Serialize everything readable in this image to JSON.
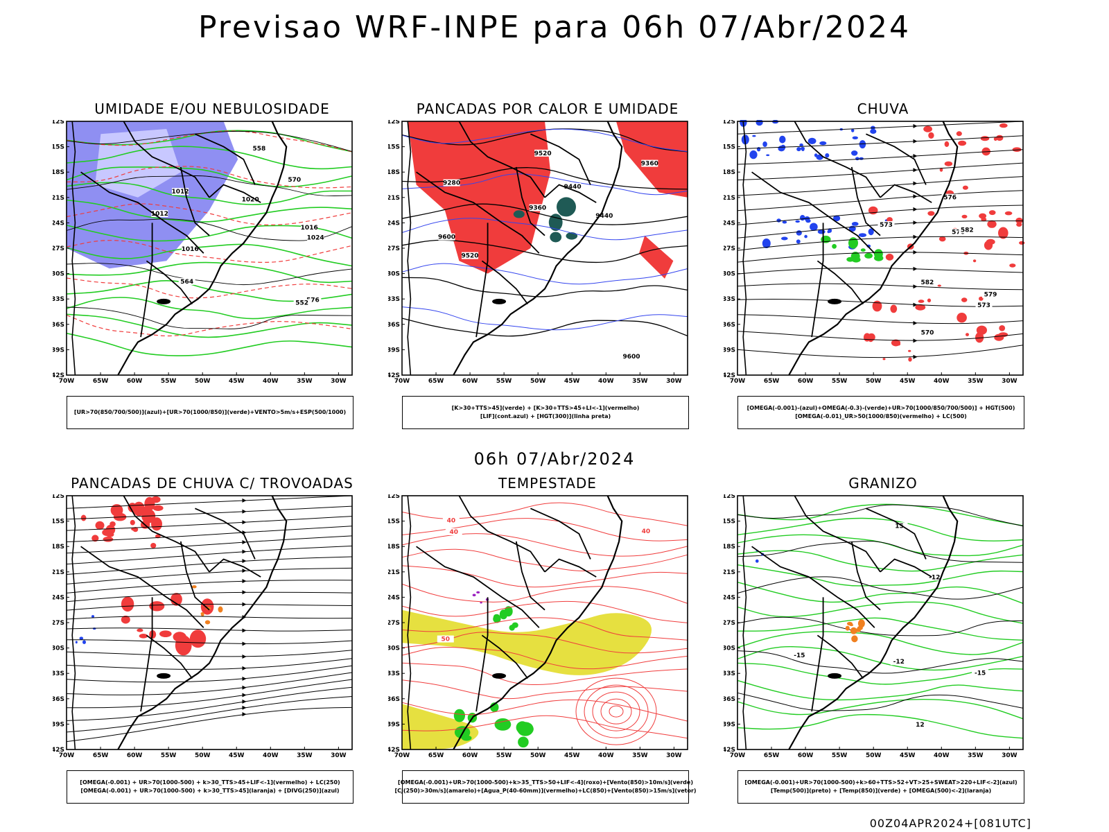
{
  "title": "Previsao WRF-INPE  para 06h 07/Abr/2024",
  "mid_title": "06h 07/Abr/2024",
  "footer_stamp": "00Z04APR2024+[081UTC]",
  "lat_ticks": [
    "12S",
    "15S",
    "18S",
    "21S",
    "24S",
    "27S",
    "30S",
    "33S",
    "36S",
    "39S",
    "42S"
  ],
  "lon_ticks": [
    "70W",
    "65W",
    "60W",
    "55W",
    "50W",
    "45W",
    "40W",
    "35W",
    "30W"
  ],
  "panels": [
    {
      "title": "UMIDADE E/OU NEBULOSIDADE",
      "legend": [
        "[UR>70(850/700/500)](azul)+[UR>70(1000/850)](verde)+VENTO>5m/s+ESP(500/1000)"
      ],
      "labels": [
        "1012",
        "1016",
        "1020",
        "1024",
        "1016",
        "576",
        "564",
        "558",
        "552",
        "570",
        "1012"
      ]
    },
    {
      "title": "PANCADAS POR CALOR E UMIDADE",
      "legend": [
        "[K>30+TTS>45](verde) + [K>30+TTS>45+LI<-1](vermelho)",
        "[LIF](cont.azul) + [HGT(300)](linha preta)"
      ],
      "labels": [
        "9600",
        "9520",
        "9440",
        "9360",
        "9280",
        "9600",
        "9520",
        "9440",
        "9360"
      ]
    },
    {
      "title": "CHUVA",
      "legend": [
        "[OMEGA(-0.001)-(azul)+OMEGA(-0.3)-(verde)+UR>70(1000/850/700/500)] + HGT(500)",
        "[OMEGA(-0.01)_UR>50(1000/850)(vermelho) + LC(500)"
      ],
      "labels": [
        "582",
        "579",
        "576",
        "573",
        "570",
        "576",
        "582",
        "573"
      ]
    },
    {
      "title": "PANCADAS DE CHUVA C/ TROVOADAS",
      "legend": [
        "[OMEGA(-0.001) + UR>70(1000-500) + k>30_TTS>45+LIF<-1](vermelho) + LC(250)",
        "[OMEGA(-0.001) + UR>70(1000-500) + k>30_TTS>45](laranja) + [DIVG(250)](azul)"
      ],
      "labels": []
    },
    {
      "title": "TEMPESTADE",
      "legend": [
        "[OMEGA(-0.001)+UR>70(1000-500)+k>35_TTS>50+LIF<-4](roxo)+[Vento(850)>10m/s](verde)",
        "[CJ(250)>30m/s](amarelo)+[Agua_P(40-60mm)](vermelho)+LC(850)+[Vento(850)>15m/s](vetor)"
      ],
      "labels": [
        "40",
        "40",
        "50",
        "40"
      ]
    },
    {
      "title": "GRANIZO",
      "legend": [
        "[OMEGA(-0.001)+UR>70(1000-500)+k>60+TTS>52+VT>25+SWEAT>220+LIF<-2](azul)",
        "[Temp(500)](preto) + [Temp(850)](verde) + [OMEGA(500)<-2](laranja)"
      ],
      "labels": [
        "-12",
        "-12",
        "-15",
        "-15",
        "12",
        "15"
      ]
    }
  ],
  "colors": {
    "blue_humidity": "#7b7bf0",
    "green": "#22cc22",
    "red": "#f03c3c",
    "dark_green": "#1f5a55",
    "yellow": "#e6e040",
    "orange": "#f08020",
    "purple": "#9a20c0"
  }
}
